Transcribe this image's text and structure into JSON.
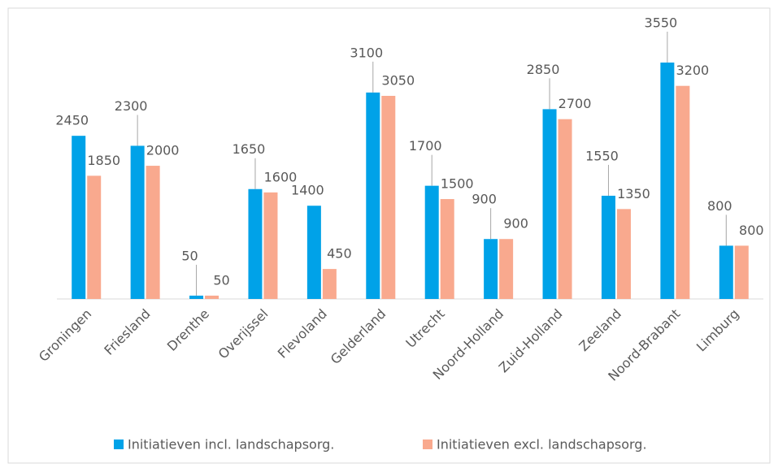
{
  "chart_data": {
    "type": "bar",
    "categories": [
      "Groningen",
      "Friesland",
      "Drenthe",
      "Overijssel",
      "Flevoland",
      "Gelderland",
      "Utrecht",
      "Noord-Holland",
      "Zuid-Holland",
      "Zeeland",
      "Noord-Brabant",
      "Limburg"
    ],
    "series": [
      {
        "name": "Initiatieven incl. landschapsorg.",
        "color": "#00a2e8",
        "values": [
          2450,
          2300,
          50,
          1650,
          1400,
          3100,
          1700,
          900,
          2850,
          1550,
          3550,
          800
        ]
      },
      {
        "name": "Initiatieven excl. landschapsorg.",
        "color": "#f9a98e",
        "values": [
          1850,
          2000,
          50,
          1600,
          450,
          3050,
          1500,
          900,
          2700,
          1350,
          3200,
          800
        ]
      }
    ],
    "legend": "bottom"
  }
}
